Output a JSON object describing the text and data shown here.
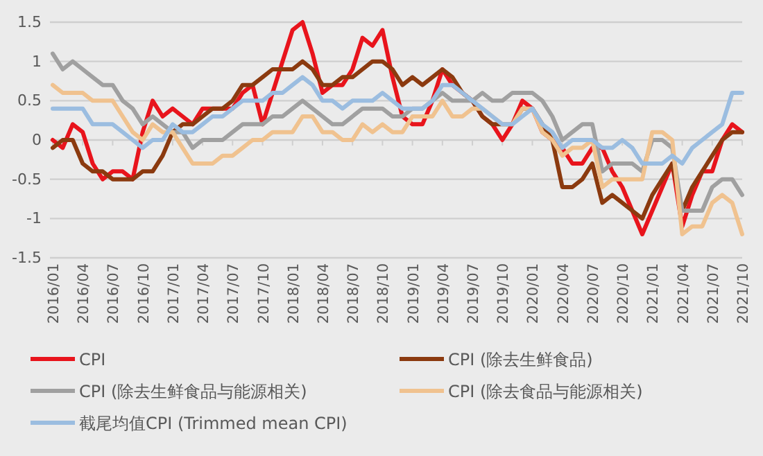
{
  "chart_data": {
    "type": "line",
    "categories": [
      "2016/01",
      null,
      null,
      "2016/04",
      null,
      null,
      "2016/07",
      null,
      null,
      "2016/10",
      null,
      null,
      "2017/01",
      null,
      null,
      "2017/04",
      null,
      null,
      "2017/07",
      null,
      null,
      "2017/10",
      null,
      null,
      "2018/01",
      null,
      null,
      "2018/04",
      null,
      null,
      "2018/07",
      null,
      null,
      "2018/10",
      null,
      null,
      "2019/01",
      null,
      null,
      "2019/04",
      null,
      null,
      "2019/07",
      null,
      null,
      "2019/10",
      null,
      null,
      "2020/01",
      null,
      null,
      "2020/04",
      null,
      null,
      "2020/07",
      null,
      null,
      "2020/10",
      null,
      null,
      "2021/01",
      null,
      null,
      "2021/04",
      null,
      null,
      "2021/07",
      null,
      null,
      "2021/10"
    ],
    "series": [
      {
        "name": "CPI",
        "color": "#e8141c",
        "values": [
          0.0,
          -0.1,
          0.2,
          0.1,
          -0.3,
          -0.5,
          -0.4,
          -0.4,
          -0.5,
          0.1,
          0.5,
          0.3,
          0.4,
          0.3,
          0.2,
          0.4,
          0.4,
          0.4,
          0.4,
          0.6,
          0.7,
          0.2,
          0.6,
          1.0,
          1.4,
          1.5,
          1.1,
          0.6,
          0.7,
          0.7,
          0.9,
          1.3,
          1.2,
          1.4,
          0.8,
          0.3,
          0.2,
          0.2,
          0.5,
          0.9,
          0.7,
          0.6,
          0.5,
          0.3,
          0.2,
          0.0,
          0.2,
          0.5,
          0.4,
          0.1,
          0.0,
          -0.1,
          -0.3,
          -0.3,
          -0.1,
          -0.1,
          -0.4,
          -0.6,
          -0.9,
          -1.2,
          -0.9,
          -0.6,
          -0.3,
          -1.1,
          -0.7,
          -0.4,
          -0.4,
          0.0,
          0.2,
          0.1
        ]
      },
      {
        "name": "CPI (除去生鲜食品)",
        "color": "#8b3a0f",
        "values": [
          -0.1,
          0.0,
          0.0,
          -0.3,
          -0.4,
          -0.4,
          -0.5,
          -0.5,
          -0.5,
          -0.4,
          -0.4,
          -0.2,
          0.1,
          0.2,
          0.2,
          0.3,
          0.4,
          0.4,
          0.5,
          0.7,
          0.7,
          0.8,
          0.9,
          0.9,
          0.9,
          1.0,
          0.9,
          0.7,
          0.7,
          0.8,
          0.8,
          0.9,
          1.0,
          1.0,
          0.9,
          0.7,
          0.8,
          0.7,
          0.8,
          0.9,
          0.8,
          0.6,
          0.5,
          0.3,
          0.2,
          0.2,
          0.2,
          0.4,
          0.4,
          0.2,
          0.0,
          -0.6,
          -0.6,
          -0.5,
          -0.3,
          -0.8,
          -0.7,
          -0.8,
          -0.9,
          -1.0,
          -0.7,
          -0.5,
          -0.3,
          -0.9,
          -0.6,
          -0.4,
          -0.2,
          0.0,
          0.1,
          0.1
        ]
      },
      {
        "name": "CPI (除去生鲜食品与能源相关)",
        "color": "#a0a0a0",
        "values": [
          1.1,
          0.9,
          1.0,
          0.9,
          0.8,
          0.7,
          0.7,
          0.5,
          0.4,
          0.2,
          0.3,
          0.2,
          0.1,
          0.1,
          -0.1,
          0.0,
          0.0,
          0.0,
          0.1,
          0.2,
          0.2,
          0.2,
          0.3,
          0.3,
          0.4,
          0.5,
          0.4,
          0.3,
          0.2,
          0.2,
          0.3,
          0.4,
          0.4,
          0.4,
          0.3,
          0.3,
          0.4,
          0.4,
          0.5,
          0.6,
          0.5,
          0.5,
          0.5,
          0.6,
          0.5,
          0.5,
          0.6,
          0.6,
          0.6,
          0.5,
          0.3,
          0.0,
          0.1,
          0.2,
          0.2,
          -0.4,
          -0.3,
          -0.3,
          -0.3,
          -0.4,
          0.0,
          0.0,
          -0.1,
          -0.9,
          -0.9,
          -0.9,
          -0.6,
          -0.5,
          -0.5,
          -0.7
        ]
      },
      {
        "name": "CPI (除去食品与能源相关)",
        "color": "#f0c28f",
        "values": [
          0.7,
          0.6,
          0.6,
          0.6,
          0.5,
          0.5,
          0.5,
          0.3,
          0.1,
          0.0,
          0.2,
          0.1,
          0.1,
          -0.1,
          -0.3,
          -0.3,
          -0.3,
          -0.2,
          -0.2,
          -0.1,
          0.0,
          0.0,
          0.1,
          0.1,
          0.1,
          0.3,
          0.3,
          0.1,
          0.1,
          0.0,
          0.0,
          0.2,
          0.1,
          0.2,
          0.1,
          0.1,
          0.3,
          0.3,
          0.3,
          0.5,
          0.3,
          0.3,
          0.4,
          0.4,
          0.3,
          0.2,
          0.2,
          0.4,
          0.4,
          0.1,
          0.0,
          -0.2,
          -0.1,
          -0.1,
          0.0,
          -0.6,
          -0.5,
          -0.5,
          -0.5,
          -0.5,
          0.1,
          0.1,
          0.0,
          -1.2,
          -1.1,
          -1.1,
          -0.8,
          -0.7,
          -0.8,
          -1.2
        ]
      },
      {
        "name": "截尾均值CPI (Trimmed mean CPI)",
        "color": "#9bbde0",
        "values": [
          0.4,
          0.4,
          0.4,
          0.4,
          0.2,
          0.2,
          0.2,
          0.1,
          0.0,
          -0.1,
          0.0,
          0.0,
          0.2,
          0.1,
          0.1,
          0.2,
          0.3,
          0.3,
          0.4,
          0.5,
          0.5,
          0.5,
          0.6,
          0.6,
          0.7,
          0.8,
          0.7,
          0.5,
          0.5,
          0.4,
          0.5,
          0.5,
          0.5,
          0.6,
          0.5,
          0.4,
          0.4,
          0.4,
          0.5,
          0.7,
          0.7,
          0.6,
          0.5,
          0.4,
          0.3,
          0.2,
          0.2,
          0.3,
          0.4,
          0.2,
          0.1,
          -0.1,
          0.0,
          0.0,
          0.0,
          -0.1,
          -0.1,
          0.0,
          -0.1,
          -0.3,
          -0.3,
          -0.3,
          -0.2,
          -0.3,
          -0.1,
          0.0,
          0.1,
          0.2,
          0.6,
          0.6
        ]
      }
    ],
    "ylim": [
      -1.5,
      1.5
    ],
    "yticks": [
      -1.5,
      -1,
      -0.5,
      0,
      0.5,
      1,
      1.5
    ],
    "grid": "y",
    "legend": "bottom"
  }
}
